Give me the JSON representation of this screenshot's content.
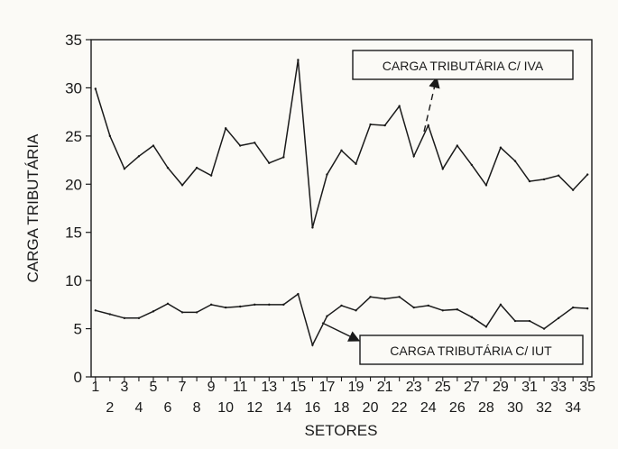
{
  "chart_data": {
    "type": "line",
    "title": "",
    "xlabel": "SETORES",
    "ylabel": "CARGA TRIBUTÁRIA",
    "xlim": [
      0.7,
      35.3
    ],
    "ylim": [
      0,
      35
    ],
    "grid": false,
    "x": [
      1,
      2,
      3,
      4,
      5,
      6,
      7,
      8,
      9,
      10,
      11,
      12,
      13,
      14,
      15,
      16,
      17,
      18,
      19,
      20,
      21,
      22,
      23,
      24,
      25,
      26,
      27,
      28,
      29,
      30,
      31,
      32,
      33,
      34,
      35
    ],
    "y_ticks": [
      {
        "v": 0,
        "label": "0"
      },
      {
        "v": 5,
        "label": "5"
      },
      {
        "v": 10,
        "label": "10"
      },
      {
        "v": 15,
        "label": "15"
      },
      {
        "v": 20,
        "label": "20"
      },
      {
        "v": 25,
        "label": "25"
      },
      {
        "v": 30,
        "label": "30"
      },
      {
        "v": 35,
        "label": "35"
      }
    ],
    "x_ticks": [
      {
        "v": 1,
        "label": "1"
      },
      {
        "v": 2,
        "label": "2"
      },
      {
        "v": 3,
        "label": "3"
      },
      {
        "v": 4,
        "label": "4"
      },
      {
        "v": 5,
        "label": "5"
      },
      {
        "v": 6,
        "label": "6"
      },
      {
        "v": 7,
        "label": "7"
      },
      {
        "v": 8,
        "label": "8"
      },
      {
        "v": 9,
        "label": "9"
      },
      {
        "v": 10,
        "label": "10"
      },
      {
        "v": 11,
        "label": "11"
      },
      {
        "v": 12,
        "label": "12"
      },
      {
        "v": 13,
        "label": "13"
      },
      {
        "v": 14,
        "label": "14"
      },
      {
        "v": 15,
        "label": "15"
      },
      {
        "v": 16,
        "label": "16"
      },
      {
        "v": 17,
        "label": "17"
      },
      {
        "v": 18,
        "label": "18"
      },
      {
        "v": 19,
        "label": "19"
      },
      {
        "v": 20,
        "label": "20"
      },
      {
        "v": 21,
        "label": "21"
      },
      {
        "v": 22,
        "label": "22"
      },
      {
        "v": 23,
        "label": "23"
      },
      {
        "v": 24,
        "label": "24"
      },
      {
        "v": 25,
        "label": "25"
      },
      {
        "v": 26,
        "label": "26"
      },
      {
        "v": 27,
        "label": "27"
      },
      {
        "v": 28,
        "label": "28"
      },
      {
        "v": 29,
        "label": "29"
      },
      {
        "v": 30,
        "label": "30"
      },
      {
        "v": 31,
        "label": "31"
      },
      {
        "v": 32,
        "label": "32"
      },
      {
        "v": 33,
        "label": "33"
      },
      {
        "v": 34,
        "label": "34"
      },
      {
        "v": 35,
        "label": "35"
      }
    ],
    "series": [
      {
        "name": "CARGA TRIBUTÁRIA C/ IVA",
        "color": "#1a1a1a",
        "values": [
          29.9,
          25.0,
          21.6,
          22.9,
          24.0,
          21.7,
          19.9,
          21.7,
          20.9,
          25.8,
          24.0,
          24.3,
          22.2,
          22.8,
          32.9,
          15.5,
          21.0,
          23.5,
          22.1,
          26.2,
          26.1,
          28.1,
          22.9,
          26.1,
          21.6,
          24.0,
          22.0,
          19.9,
          23.8,
          22.4,
          20.3,
          20.5,
          20.9,
          19.4,
          21.0
        ]
      },
      {
        "name": "CARGA TRIBUTÁRIA C/ IUT",
        "color": "#1a1a1a",
        "values": [
          6.9,
          6.5,
          6.1,
          6.1,
          6.8,
          7.6,
          6.7,
          6.7,
          7.5,
          7.2,
          7.3,
          7.5,
          7.5,
          7.5,
          8.6,
          3.3,
          6.3,
          7.4,
          6.9,
          8.3,
          8.1,
          8.3,
          7.2,
          7.4,
          6.9,
          7.0,
          6.2,
          5.2,
          7.5,
          5.8,
          5.8,
          5.0,
          6.1,
          7.2,
          7.1
        ]
      }
    ],
    "annotations": [
      {
        "text": "CARGA TRIBUTÁRIA C/ IVA",
        "series": 0,
        "style": "dashed-arrow"
      },
      {
        "text": "CARGA TRIBUTÁRIA C/ IUT",
        "series": 1,
        "style": "solid-arrow"
      }
    ]
  }
}
